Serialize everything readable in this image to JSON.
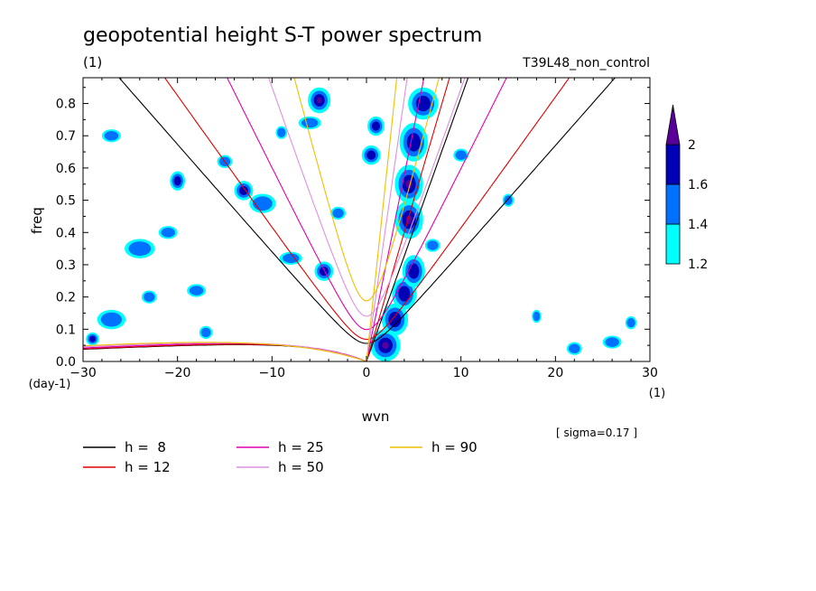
{
  "chart_data": {
    "type": "line",
    "title": "geopotential height S-T power spectrum",
    "subtitle_left": "(1)",
    "subtitle_right": "T39L48_non_control",
    "xlabel": "wvn",
    "ylabel": "freq",
    "x_unit": "(1)",
    "y_unit": "(day-1)",
    "note": "[ sigma=0.17 ]",
    "xlim": [
      -30,
      30
    ],
    "ylim": [
      0,
      0.88
    ],
    "x_ticks": [
      -30,
      -20,
      -10,
      0,
      10,
      20,
      30
    ],
    "y_ticks": [
      0.0,
      0.1,
      0.2,
      0.3,
      0.4,
      0.5,
      0.6,
      0.7,
      0.8
    ],
    "x_tick_labels": [
      "−30",
      "−20",
      "−10",
      "0",
      "10",
      "20",
      "30"
    ],
    "y_tick_labels": [
      "0.0",
      "0.1",
      "0.2",
      "0.3",
      "0.4",
      "0.5",
      "0.6",
      "0.7",
      "0.8"
    ],
    "colorbar": {
      "levels": [
        "1.2",
        "1.4",
        "1.6",
        "2"
      ],
      "colors": [
        "#00ffff",
        "#0070ff",
        "#0000b4",
        "#5a009a"
      ]
    },
    "legend": [
      {
        "label": "h =  8",
        "color": "#000000"
      },
      {
        "label": "h = 12",
        "color": "#e00000"
      },
      {
        "label": "h = 25",
        "color": "#e000b0"
      },
      {
        "label": "h = 50",
        "color": "#e090e0"
      },
      {
        "label": "h = 90",
        "color": "#f0c000"
      }
    ],
    "series": [
      {
        "name": "h =  8",
        "color": "#000000",
        "h": 8
      },
      {
        "name": "h = 12",
        "color": "#e00000",
        "h": 12
      },
      {
        "name": "h = 25",
        "color": "#e000b0",
        "h": 25
      },
      {
        "name": "h = 50",
        "color": "#e090e0",
        "h": 50
      },
      {
        "name": "h = 90",
        "color": "#f0c000",
        "h": 90
      }
    ],
    "blobs": [
      {
        "x": 2,
        "y": 0.05,
        "rx": 1.6,
        "ry": 0.05,
        "level": 3
      },
      {
        "x": 3,
        "y": 0.13,
        "rx": 1.4,
        "ry": 0.05,
        "level": 2
      },
      {
        "x": 4,
        "y": 0.21,
        "rx": 1.3,
        "ry": 0.05,
        "level": 2
      },
      {
        "x": 5,
        "y": 0.28,
        "rx": 1.2,
        "ry": 0.05,
        "level": 2
      },
      {
        "x": 4.5,
        "y": 0.44,
        "rx": 1.5,
        "ry": 0.06,
        "level": 3
      },
      {
        "x": 4.5,
        "y": 0.55,
        "rx": 1.5,
        "ry": 0.06,
        "level": 3
      },
      {
        "x": 5,
        "y": 0.68,
        "rx": 1.5,
        "ry": 0.06,
        "level": 2
      },
      {
        "x": 6,
        "y": 0.8,
        "rx": 1.6,
        "ry": 0.05,
        "level": 2
      },
      {
        "x": -5,
        "y": 0.81,
        "rx": 1.2,
        "ry": 0.04,
        "level": 3
      },
      {
        "x": 1,
        "y": 0.73,
        "rx": 0.9,
        "ry": 0.03,
        "level": 2
      },
      {
        "x": -4.5,
        "y": 0.28,
        "rx": 1.0,
        "ry": 0.03,
        "level": 2
      },
      {
        "x": 0.5,
        "y": 0.64,
        "rx": 1.0,
        "ry": 0.03,
        "level": 2
      },
      {
        "x": -13,
        "y": 0.53,
        "rx": 1.0,
        "ry": 0.03,
        "level": 2
      },
      {
        "x": -20,
        "y": 0.56,
        "rx": 0.8,
        "ry": 0.03,
        "level": 2
      },
      {
        "x": -24,
        "y": 0.35,
        "rx": 1.6,
        "ry": 0.03,
        "level": 1
      },
      {
        "x": -27,
        "y": 0.13,
        "rx": 1.5,
        "ry": 0.03,
        "level": 1
      },
      {
        "x": -18,
        "y": 0.22,
        "rx": 1.0,
        "ry": 0.02,
        "level": 1
      },
      {
        "x": -6,
        "y": 0.74,
        "rx": 1.2,
        "ry": 0.02,
        "level": 1
      },
      {
        "x": -27,
        "y": 0.7,
        "rx": 1.0,
        "ry": 0.02,
        "level": 1
      },
      {
        "x": -23,
        "y": 0.2,
        "rx": 0.8,
        "ry": 0.02,
        "level": 1
      },
      {
        "x": -21,
        "y": 0.4,
        "rx": 1.0,
        "ry": 0.02,
        "level": 1
      },
      {
        "x": -11,
        "y": 0.49,
        "rx": 1.4,
        "ry": 0.03,
        "level": 1
      },
      {
        "x": -8,
        "y": 0.32,
        "rx": 1.2,
        "ry": 0.02,
        "level": 1
      },
      {
        "x": 10,
        "y": 0.64,
        "rx": 0.8,
        "ry": 0.02,
        "level": 1
      },
      {
        "x": 15,
        "y": 0.5,
        "rx": 0.6,
        "ry": 0.02,
        "level": 1
      },
      {
        "x": 22,
        "y": 0.04,
        "rx": 0.8,
        "ry": 0.02,
        "level": 1
      },
      {
        "x": 26,
        "y": 0.06,
        "rx": 1.0,
        "ry": 0.02,
        "level": 1
      },
      {
        "x": 18,
        "y": 0.14,
        "rx": 0.5,
        "ry": 0.02,
        "level": 1
      },
      {
        "x": 28,
        "y": 0.12,
        "rx": 0.6,
        "ry": 0.02,
        "level": 1
      },
      {
        "x": -29,
        "y": 0.07,
        "rx": 0.7,
        "ry": 0.02,
        "level": 2
      },
      {
        "x": -15,
        "y": 0.62,
        "rx": 0.8,
        "ry": 0.02,
        "level": 1
      },
      {
        "x": -9,
        "y": 0.71,
        "rx": 0.6,
        "ry": 0.02,
        "level": 1
      },
      {
        "x": -3,
        "y": 0.46,
        "rx": 0.8,
        "ry": 0.02,
        "level": 1
      },
      {
        "x": 7,
        "y": 0.36,
        "rx": 0.8,
        "ry": 0.02,
        "level": 1
      },
      {
        "x": -17,
        "y": 0.09,
        "rx": 0.7,
        "ry": 0.02,
        "level": 1
      }
    ]
  }
}
